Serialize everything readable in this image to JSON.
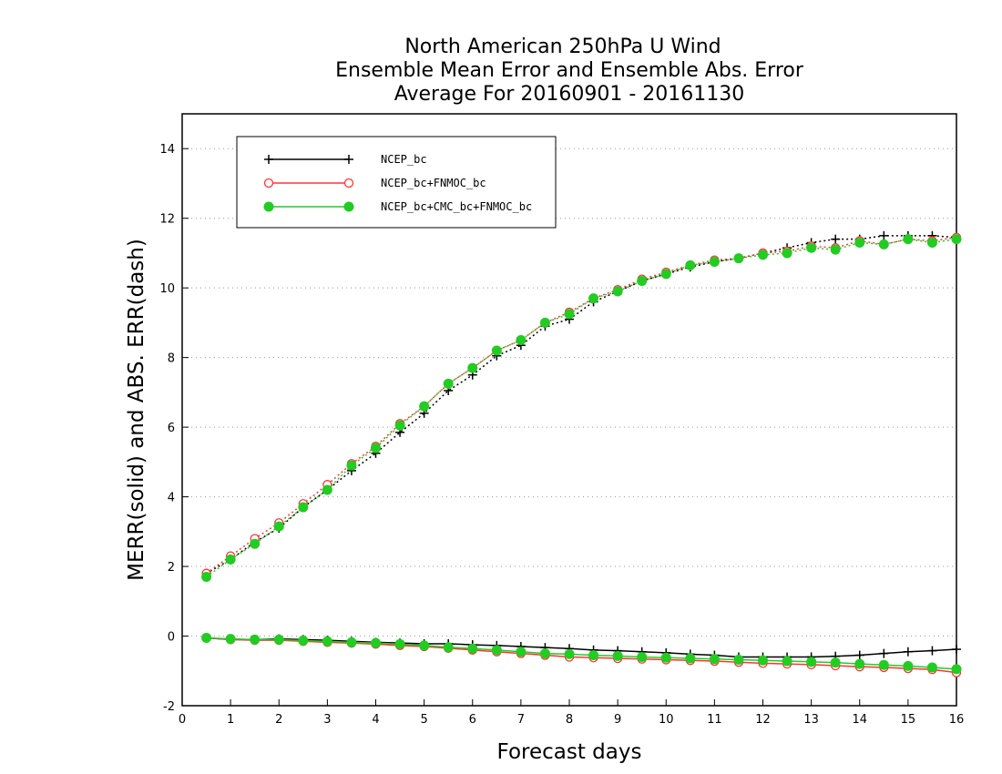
{
  "chart_data": {
    "type": "line",
    "title": [
      "North American 250hPa U Wind",
      "Ensemble Mean Error and Ensemble Abs. Error",
      "Average For 20160901 - 20161130"
    ],
    "xlabel": "Forecast days",
    "ylabel": "MERR(solid) and ABS. ERR(dash)",
    "xlim": [
      0,
      16
    ],
    "ylim": [
      -2,
      15
    ],
    "xticks": [
      "0",
      "1",
      "2",
      "3",
      "4",
      "5",
      "6",
      "7",
      "8",
      "9",
      "10",
      "11",
      "12",
      "13",
      "14",
      "15",
      "16"
    ],
    "yticks": [
      "-2",
      "0",
      "2",
      "4",
      "6",
      "8",
      "10",
      "12",
      "14"
    ],
    "grid": "horizontal dotted",
    "legend_position": "top-left",
    "x": [
      0.5,
      1,
      1.5,
      2,
      2.5,
      3,
      3.5,
      4,
      4.5,
      5,
      5.5,
      6,
      6.5,
      7,
      7.5,
      8,
      8.5,
      9,
      9.5,
      10,
      10.5,
      11,
      11.5,
      12,
      12.5,
      13,
      13.5,
      14,
      14.5,
      15,
      15.5,
      16
    ],
    "series": [
      {
        "name": "NCEP_bc",
        "color": "#000000",
        "marker": "plus",
        "merr": [
          -0.05,
          -0.1,
          -0.1,
          -0.08,
          -0.1,
          -0.12,
          -0.15,
          -0.18,
          -0.2,
          -0.22,
          -0.22,
          -0.25,
          -0.27,
          -0.3,
          -0.33,
          -0.36,
          -0.4,
          -0.42,
          -0.45,
          -0.48,
          -0.52,
          -0.55,
          -0.6,
          -0.6,
          -0.6,
          -0.6,
          -0.58,
          -0.55,
          -0.5,
          -0.45,
          -0.42,
          -0.38
        ],
        "abs_err": [
          1.8,
          2.2,
          2.7,
          3.1,
          3.7,
          4.2,
          4.75,
          5.25,
          5.85,
          6.4,
          7.05,
          7.5,
          8.05,
          8.35,
          8.9,
          9.1,
          9.6,
          9.9,
          10.2,
          10.4,
          10.6,
          10.75,
          10.85,
          11.0,
          11.15,
          11.3,
          11.4,
          11.4,
          11.5,
          11.5,
          11.5,
          11.45
        ]
      },
      {
        "name": "NCEP_bc+FNMOC_bc",
        "color": "#ff3333",
        "marker": "open-circle",
        "merr": [
          -0.05,
          -0.1,
          -0.12,
          -0.12,
          -0.15,
          -0.18,
          -0.2,
          -0.23,
          -0.27,
          -0.3,
          -0.35,
          -0.4,
          -0.45,
          -0.5,
          -0.55,
          -0.6,
          -0.62,
          -0.64,
          -0.66,
          -0.68,
          -0.7,
          -0.72,
          -0.75,
          -0.78,
          -0.8,
          -0.82,
          -0.85,
          -0.88,
          -0.9,
          -0.93,
          -0.96,
          -1.05
        ],
        "abs_err": [
          1.8,
          2.3,
          2.8,
          3.25,
          3.8,
          4.35,
          4.95,
          5.45,
          6.1,
          6.6,
          7.25,
          7.7,
          8.2,
          8.5,
          9.0,
          9.3,
          9.7,
          9.95,
          10.25,
          10.45,
          10.65,
          10.8,
          10.85,
          11.0,
          11.05,
          11.2,
          11.15,
          11.35,
          11.25,
          11.4,
          11.35,
          11.45
        ]
      },
      {
        "name": "NCEP_bc+CMC_bc+FNMOC_bc",
        "color": "#22cc22",
        "marker": "filled-circle",
        "merr": [
          -0.05,
          -0.08,
          -0.1,
          -0.1,
          -0.13,
          -0.15,
          -0.18,
          -0.2,
          -0.23,
          -0.27,
          -0.32,
          -0.36,
          -0.4,
          -0.45,
          -0.5,
          -0.52,
          -0.55,
          -0.57,
          -0.6,
          -0.62,
          -0.64,
          -0.66,
          -0.68,
          -0.7,
          -0.72,
          -0.74,
          -0.76,
          -0.8,
          -0.83,
          -0.86,
          -0.9,
          -0.95
        ],
        "abs_err": [
          1.7,
          2.2,
          2.65,
          3.15,
          3.7,
          4.2,
          4.9,
          5.4,
          6.05,
          6.6,
          7.25,
          7.7,
          8.2,
          8.5,
          9.0,
          9.25,
          9.7,
          9.9,
          10.2,
          10.4,
          10.65,
          10.75,
          10.85,
          10.95,
          11.0,
          11.15,
          11.1,
          11.3,
          11.25,
          11.4,
          11.3,
          11.4
        ]
      }
    ]
  }
}
